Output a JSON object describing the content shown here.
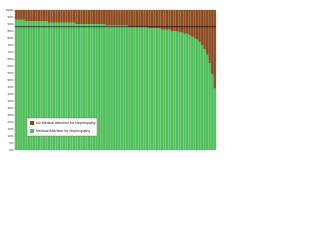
{
  "chart_data": {
    "type": "stacked_bar",
    "categories": [
      null,
      null,
      null,
      null,
      null,
      null,
      null,
      null,
      null,
      null,
      null,
      null,
      null,
      null,
      null,
      null,
      null,
      null,
      null,
      null,
      null,
      null,
      null,
      null,
      null,
      null,
      null,
      null,
      null,
      null,
      null,
      null,
      null,
      null,
      null,
      null,
      null,
      null,
      null,
      null,
      null,
      null,
      null,
      null,
      null,
      null,
      null,
      null,
      null,
      null,
      null,
      null,
      null,
      null,
      null,
      null,
      null,
      null,
      null,
      null,
      null,
      null,
      null,
      null,
      null,
      null,
      null,
      null,
      null,
      null,
      null,
      null,
      null,
      null,
      null,
      null,
      null,
      null,
      null,
      null
    ],
    "series": [
      {
        "name": "Medical Attention for Nephropathy",
        "color": "#4fbf5a",
        "values": [
          93,
          93,
          93,
          93,
          92,
          92,
          92,
          92,
          92,
          92,
          92,
          92,
          92,
          91,
          91,
          91,
          91,
          91,
          91,
          91,
          91,
          91,
          91,
          91,
          90,
          90,
          90,
          90,
          90,
          90,
          90,
          90,
          90,
          90,
          90,
          90,
          89,
          89,
          89,
          89,
          89,
          89,
          89,
          89,
          89,
          88,
          88,
          88,
          88,
          88,
          88,
          88,
          88,
          87,
          87,
          87,
          87,
          87,
          86,
          86,
          86,
          86,
          85,
          85,
          85,
          84,
          84,
          83,
          83,
          82,
          81,
          80,
          79,
          77,
          75,
          72,
          68,
          62,
          54,
          44
        ]
      },
      {
        "name": "No Medical Attention for Nephropathy",
        "color": "#8b4a1e",
        "values": [
          7,
          7,
          7,
          7,
          8,
          8,
          8,
          8,
          8,
          8,
          8,
          8,
          8,
          9,
          9,
          9,
          9,
          9,
          9,
          9,
          9,
          9,
          9,
          9,
          10,
          10,
          10,
          10,
          10,
          10,
          10,
          10,
          10,
          10,
          10,
          10,
          11,
          11,
          11,
          11,
          11,
          11,
          11,
          11,
          11,
          12,
          12,
          12,
          12,
          12,
          12,
          12,
          12,
          13,
          13,
          13,
          13,
          13,
          14,
          14,
          14,
          14,
          15,
          15,
          15,
          16,
          16,
          17,
          17,
          18,
          19,
          20,
          21,
          23,
          25,
          28,
          32,
          38,
          46,
          56
        ]
      }
    ],
    "ylim": [
      0,
      100
    ],
    "yticks": [
      {
        "value": 0,
        "label": "0%"
      },
      {
        "value": 5,
        "label": "5%"
      },
      {
        "value": 10,
        "label": "10%"
      },
      {
        "value": 15,
        "label": "15%"
      },
      {
        "value": 20,
        "label": "20%"
      },
      {
        "value": 25,
        "label": "25%"
      },
      {
        "value": 30,
        "label": "30%"
      },
      {
        "value": 35,
        "label": "35%"
      },
      {
        "value": 40,
        "label": "40%"
      },
      {
        "value": 45,
        "label": "45%"
      },
      {
        "value": 50,
        "label": "50%"
      },
      {
        "value": 55,
        "label": "55%"
      },
      {
        "value": 60,
        "label": "60%"
      },
      {
        "value": 65,
        "label": "65%"
      },
      {
        "value": 70,
        "label": "70%"
      },
      {
        "value": 75,
        "label": "75%"
      },
      {
        "value": 80,
        "label": "80%"
      },
      {
        "value": 85,
        "label": "85%"
      },
      {
        "value": 90,
        "label": "90%"
      },
      {
        "value": 95,
        "label": "95%"
      },
      {
        "value": 100,
        "label": "100%"
      }
    ],
    "reference_line": 88,
    "legend": "lower left"
  }
}
